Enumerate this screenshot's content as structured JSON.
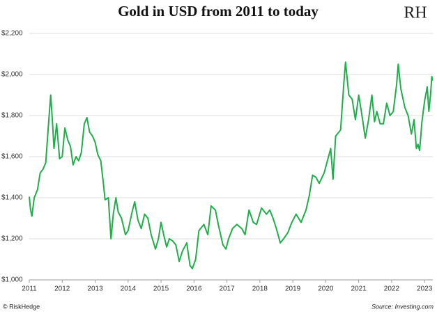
{
  "chart_data": {
    "type": "line",
    "title": "Gold in USD from 2011 to today",
    "logo": "RH",
    "footer_left": "© RiskHedge",
    "footer_right": "Source: Investing.com",
    "xlim": [
      2011,
      2023.25
    ],
    "xticks": [
      2011,
      2012,
      2013,
      2014,
      2015,
      2016,
      2017,
      2018,
      2019,
      2020,
      2021,
      2022,
      2023
    ],
    "ylim": [
      1000,
      2200
    ],
    "yticks": [
      {
        "value": 1000,
        "label": "$1,000"
      },
      {
        "value": 1200,
        "label": "$1,200"
      },
      {
        "value": 1400,
        "label": "$1,400"
      },
      {
        "value": 1600,
        "label": "$1,600"
      },
      {
        "value": 1800,
        "label": "$1,800"
      },
      {
        "value": 2000,
        "label": "$2,000"
      },
      {
        "value": 2200,
        "label": "$2,200"
      }
    ],
    "grid": true,
    "series": [
      {
        "color": "#1fae4b",
        "x": [
          2011.0,
          2011.04,
          2011.08,
          2011.15,
          2011.25,
          2011.33,
          2011.42,
          2011.5,
          2011.58,
          2011.65,
          2011.7,
          2011.75,
          2011.83,
          2011.92,
          2012.0,
          2012.08,
          2012.17,
          2012.25,
          2012.33,
          2012.42,
          2012.5,
          2012.58,
          2012.67,
          2012.75,
          2012.83,
          2012.92,
          2013.0,
          2013.08,
          2013.17,
          2013.25,
          2013.3,
          2013.4,
          2013.48,
          2013.55,
          2013.63,
          2013.7,
          2013.8,
          2013.92,
          2014.0,
          2014.12,
          2014.2,
          2014.3,
          2014.4,
          2014.5,
          2014.6,
          2014.7,
          2014.83,
          2014.92,
          2015.0,
          2015.08,
          2015.17,
          2015.25,
          2015.35,
          2015.45,
          2015.55,
          2015.65,
          2015.78,
          2015.88,
          2015.95,
          2016.05,
          2016.15,
          2016.3,
          2016.42,
          2016.52,
          2016.65,
          2016.75,
          2016.88,
          2016.97,
          2017.05,
          2017.17,
          2017.3,
          2017.45,
          2017.55,
          2017.67,
          2017.8,
          2017.9,
          2018.05,
          2018.2,
          2018.3,
          2018.4,
          2018.5,
          2018.62,
          2018.72,
          2018.85,
          2018.97,
          2019.1,
          2019.25,
          2019.4,
          2019.5,
          2019.6,
          2019.7,
          2019.8,
          2019.95,
          2020.05,
          2020.15,
          2020.22,
          2020.3,
          2020.45,
          2020.55,
          2020.6,
          2020.7,
          2020.8,
          2020.9,
          2021.0,
          2021.1,
          2021.2,
          2021.3,
          2021.4,
          2021.48,
          2021.55,
          2021.65,
          2021.75,
          2021.85,
          2021.95,
          2022.05,
          2022.15,
          2022.2,
          2022.28,
          2022.4,
          2022.5,
          2022.6,
          2022.68,
          2022.75,
          2022.8,
          2022.85,
          2022.92,
          2023.0,
          2023.08,
          2023.13,
          2023.18,
          2023.22,
          2023.24
        ],
        "values": [
          1405,
          1340,
          1310,
          1400,
          1440,
          1520,
          1540,
          1570,
          1750,
          1900,
          1780,
          1640,
          1760,
          1590,
          1600,
          1740,
          1680,
          1650,
          1560,
          1600,
          1580,
          1620,
          1760,
          1790,
          1720,
          1700,
          1670,
          1610,
          1580,
          1470,
          1390,
          1400,
          1200,
          1320,
          1400,
          1330,
          1300,
          1220,
          1240,
          1330,
          1380,
          1290,
          1250,
          1320,
          1300,
          1220,
          1150,
          1200,
          1280,
          1220,
          1160,
          1200,
          1190,
          1170,
          1090,
          1140,
          1180,
          1070,
          1055,
          1100,
          1240,
          1270,
          1220,
          1360,
          1340,
          1260,
          1170,
          1150,
          1200,
          1250,
          1270,
          1250,
          1220,
          1340,
          1280,
          1270,
          1350,
          1320,
          1340,
          1300,
          1250,
          1180,
          1200,
          1230,
          1280,
          1320,
          1280,
          1340,
          1410,
          1510,
          1500,
          1470,
          1520,
          1580,
          1640,
          1490,
          1700,
          1730,
          1960,
          2060,
          1900,
          1880,
          1780,
          1900,
          1800,
          1690,
          1780,
          1900,
          1770,
          1820,
          1760,
          1760,
          1860,
          1800,
          1820,
          1950,
          2050,
          1930,
          1840,
          1800,
          1710,
          1780,
          1640,
          1660,
          1630,
          1770,
          1870,
          1940,
          1820,
          1900,
          1990,
          1970
        ]
      }
    ]
  }
}
